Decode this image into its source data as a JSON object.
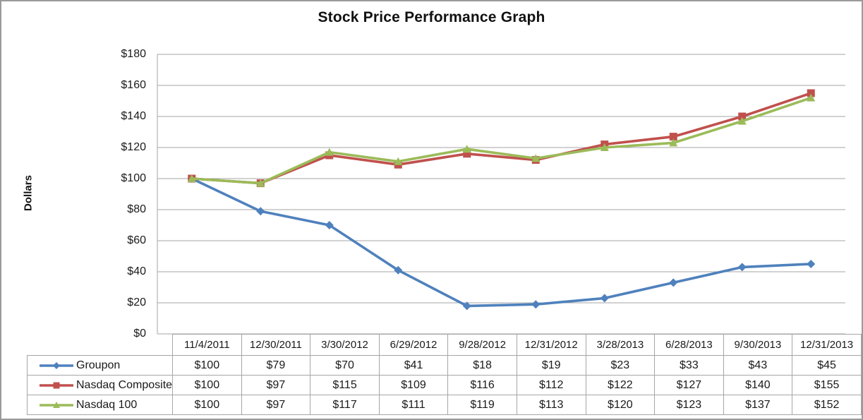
{
  "title": "Stock Price Performance Graph",
  "colors": {
    "groupon_blue": "#4F81BD",
    "nasdaq_composite_red": "#C0504D",
    "nasdaq_100_green": "#9BBB59",
    "gridline": "#a6a6a6",
    "table_border": "#a6a6a6",
    "outer_border": "#9a9a9a",
    "text": "#1a1a1a"
  },
  "chart_data": {
    "type": "line",
    "title": "Stock Price Performance Graph",
    "xlabel": "",
    "ylabel": "Dollars",
    "ylim": [
      0,
      180
    ],
    "ytick_step": 20,
    "ytick_labels": [
      "$180",
      "$160",
      "$140",
      "$120",
      "$100",
      "$80",
      "$60",
      "$40",
      "$20",
      "$0"
    ],
    "grid": true,
    "legend_position": "table-left",
    "categories": [
      "11/4/2011",
      "12/30/2011",
      "3/30/2012",
      "6/29/2012",
      "9/28/2012",
      "12/31/2012",
      "3/28/2013",
      "6/28/2013",
      "9/30/2013",
      "12/31/2013"
    ],
    "series": [
      {
        "name": "Groupon",
        "marker": "diamond",
        "color": "#4F81BD",
        "values": [
          100,
          79,
          70,
          41,
          18,
          19,
          23,
          33,
          43,
          45
        ]
      },
      {
        "name": "Nasdaq Composite",
        "marker": "square",
        "color": "#C0504D",
        "values": [
          100,
          97,
          115,
          109,
          116,
          112,
          122,
          127,
          140,
          155
        ]
      },
      {
        "name": "Nasdaq 100",
        "marker": "triangle",
        "color": "#9BBB59",
        "values": [
          100,
          97,
          117,
          111,
          119,
          113,
          120,
          123,
          137,
          152
        ]
      }
    ]
  },
  "table": {
    "header_cells": [
      "",
      "11/4/2011",
      "12/30/2011",
      "3/30/2012",
      "6/29/2012",
      "9/28/2012",
      "12/31/2012",
      "3/28/2013",
      "6/28/2013",
      "9/30/2013",
      "12/31/2013"
    ],
    "rows": [
      {
        "label": "Groupon",
        "cells": [
          "$100",
          "$79",
          "$70",
          "$41",
          "$18",
          "$19",
          "$23",
          "$33",
          "$43",
          "$45"
        ]
      },
      {
        "label": "Nasdaq Composite",
        "cells": [
          "$100",
          "$97",
          "$115",
          "$109",
          "$116",
          "$112",
          "$122",
          "$127",
          "$140",
          "$155"
        ]
      },
      {
        "label": "Nasdaq 100",
        "cells": [
          "$100",
          "$97",
          "$117",
          "$111",
          "$119",
          "$113",
          "$120",
          "$123",
          "$137",
          "$152"
        ]
      }
    ]
  }
}
